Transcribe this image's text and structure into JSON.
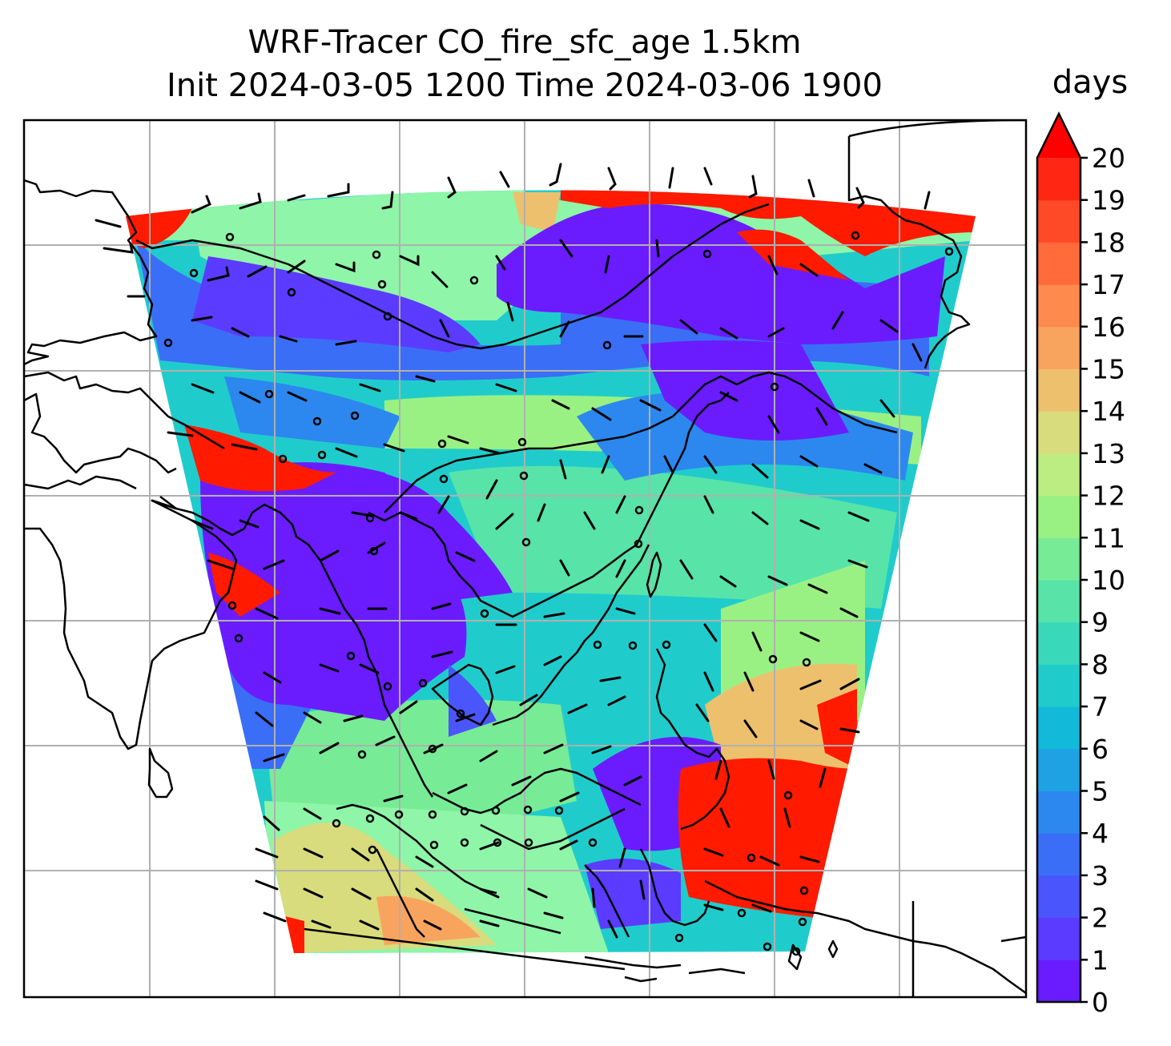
{
  "title": {
    "line1": "WRF-Tracer CO_fire_sfc_age 1.5km",
    "line2": "Init 2024-03-05 1200 Time 2024-03-06 1900"
  },
  "colorbar": {
    "units": "days",
    "ticks": [
      "0",
      "1",
      "2",
      "3",
      "4",
      "5",
      "6",
      "7",
      "8",
      "9",
      "10",
      "11",
      "12",
      "13",
      "14",
      "15",
      "16",
      "17",
      "18",
      "19",
      "20"
    ],
    "extend": "max",
    "colors": [
      "#6a1cff",
      "#5b3bff",
      "#4a55fb",
      "#3b6ef6",
      "#2c88ee",
      "#1ea2e4",
      "#12b9d8",
      "#20cccb",
      "#3ad8bb",
      "#58e3a9",
      "#78eb96",
      "#9af183",
      "#bced82",
      "#d8dc7c",
      "#edc06e",
      "#f9a45e",
      "#fe8a4d",
      "#ff6b3b",
      "#ff4a28",
      "#ff2614"
    ],
    "extend_color": "#ff0000"
  },
  "map": {
    "gridlines": true,
    "field_colors": {
      "purple": "#6a1cff",
      "blue": "#3b6ef6",
      "cyan": "#20cccb",
      "green": "#8ff5a8",
      "yellow": "#d8dc7c",
      "orange": "#f9a45e",
      "red": "#ff1a00"
    }
  }
}
